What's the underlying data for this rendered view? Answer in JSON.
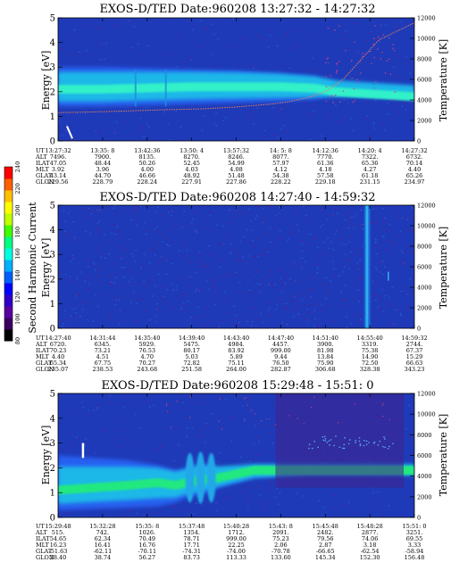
{
  "colorbar": {
    "label": "Second Harmonic Current",
    "ticks": [
      "80",
      "100",
      "120",
      "140",
      "160",
      "180",
      "200",
      "220",
      "240"
    ],
    "colors": [
      "#000000",
      "#3a0060",
      "#5a00a0",
      "#3000c8",
      "#0000ff",
      "#0060ff",
      "#00b0ff",
      "#00ffe0",
      "#00ff80",
      "#40ff00",
      "#c0ff00",
      "#ffff00",
      "#ffc000",
      "#ff6000",
      "#ff0000"
    ]
  },
  "chart_data": [
    {
      "type": "heatmap",
      "title": "EXOS-D/TED   Date:960208   13:27:32 - 14:27:32",
      "ylabel": "Energy [eV]",
      "y2label": "Temperature [K]",
      "ylim": [
        0,
        5
      ],
      "y2lim": [
        0,
        12000
      ],
      "yticks": [
        "0",
        "1",
        "2",
        "3",
        "4",
        "5"
      ],
      "y2ticks": [
        "0",
        "2000",
        "4000",
        "6000",
        "8000",
        "10000",
        "12000"
      ],
      "band": {
        "x": [
          0.0,
          0.12,
          0.25,
          0.38,
          0.5,
          0.62,
          0.72,
          0.78,
          1.0
        ],
        "low": [
          1.4,
          1.4,
          1.45,
          1.5,
          1.55,
          1.6,
          1.7,
          1.9,
          2.0
        ],
        "high": [
          3.0,
          3.0,
          2.95,
          2.9,
          2.85,
          2.75,
          2.6,
          2.4,
          2.2
        ],
        "core": [
          2.1,
          2.1,
          2.15,
          2.2,
          2.2,
          2.2,
          2.15,
          2.0,
          1.8
        ]
      },
      "temperature": {
        "x": [
          0.0,
          0.1,
          0.2,
          0.3,
          0.4,
          0.5,
          0.6,
          0.65,
          0.7,
          0.75,
          0.8,
          0.85,
          0.9,
          1.0
        ],
        "y": [
          1.15,
          1.18,
          1.22,
          1.27,
          1.3,
          1.38,
          1.5,
          1.6,
          1.75,
          2.0,
          2.5,
          3.3,
          4.1,
          4.8
        ]
      },
      "table": {
        "row_labels": [
          "UT",
          "ALT",
          "ILAT",
          "MLT",
          "GLAT",
          "GLON"
        ],
        "columns": [
          [
            "13:27:32",
            "7496.",
            "47.05",
            "3.92",
            "43.14",
            "229.56"
          ],
          [
            "13:35: 8",
            "7900.",
            "48.44",
            "3.96",
            "44.70",
            "228.79"
          ],
          [
            "13:42:36",
            "8135.",
            "50.26",
            "4.00",
            "46.66",
            "228.24"
          ],
          [
            "13:50: 4",
            "8270.",
            "52.45",
            "4.03",
            "48.92",
            "227.91"
          ],
          [
            "13:57:32",
            "8246.",
            "54.99",
            "4.08",
            "51.48",
            "227.86"
          ],
          [
            "14: 5: 8",
            "8077.",
            "57.97",
            "4.12",
            "54.38",
            "228.22"
          ],
          [
            "14:12:36",
            "7770.",
            "61.36",
            "4.18",
            "57.58",
            "229.18"
          ],
          [
            "14:20: 4",
            "7322.",
            "65.36",
            "4.27",
            "61.18",
            "231.15"
          ],
          [
            "14:27:32",
            "6732.",
            "70.14",
            "4.40",
            "65.26",
            "234.97"
          ]
        ]
      }
    },
    {
      "type": "heatmap",
      "title": "EXOS-D/TED   Date:960208   14:27:40 - 14:59:32",
      "ylabel": "Energy [eV]",
      "y2label": "Temperature [K]",
      "ylim": [
        0,
        5
      ],
      "y2lim": [
        0,
        12000
      ],
      "yticks": [
        "0",
        "1",
        "2",
        "3",
        "4",
        "5"
      ],
      "y2ticks": [
        "0",
        "2000",
        "4000",
        "6000",
        "8000",
        "10000",
        "12000"
      ],
      "spike_x": 0.86,
      "table": {
        "row_labels": [
          "UT",
          "ALT",
          "ILAT",
          "MLT",
          "GLAT",
          "GLON"
        ],
        "columns": [
          [
            "14:27:40",
            "6720.",
            "70.23",
            "4.40",
            "65.34",
            "235.07"
          ],
          [
            "14:31:44",
            "6345.",
            "73.21",
            "4.51",
            "67.75",
            "238.53"
          ],
          [
            "14:35:40",
            "5929.",
            "76.53",
            "4.70",
            "70.27",
            "243.68"
          ],
          [
            "14:39:40",
            "5475.",
            "80.17",
            "5.03",
            "72.82",
            "251.58"
          ],
          [
            "14:43:40",
            "4984.",
            "83.92",
            "5.89",
            "75.11",
            "264.00"
          ],
          [
            "14:47:40",
            "4457.",
            "999.00",
            "9.44",
            "76.50",
            "282.87"
          ],
          [
            "14:51:40",
            "3900.",
            "81.98",
            "13.84",
            "75.90",
            "306.68"
          ],
          [
            "14:55:40",
            "3319.",
            "75.38",
            "14.90",
            "72.50",
            "328.38"
          ],
          [
            "14:59:32",
            "2744.",
            "67.37",
            "15.29",
            "66.63",
            "343.23"
          ]
        ]
      }
    },
    {
      "type": "heatmap",
      "title": "EXOS-D/TED   Date:960208   15:29:48 - 15:51: 0",
      "ylabel": "Energy [eV]",
      "y2label": "Temperature [K]",
      "ylim": [
        0,
        5
      ],
      "y2lim": [
        0,
        12000
      ],
      "yticks": [
        "0",
        "1",
        "2",
        "3",
        "4",
        "5"
      ],
      "y2ticks": [
        "0",
        "2000",
        "4000",
        "6000",
        "8000",
        "10000",
        "12000"
      ],
      "band": {
        "x": [
          0.0,
          0.1,
          0.2,
          0.28,
          0.33,
          0.36,
          0.4,
          0.45,
          0.55,
          0.7,
          0.85,
          1.0
        ],
        "low": [
          0.3,
          0.35,
          0.4,
          0.45,
          0.6,
          0.8,
          0.9,
          1.2,
          1.6,
          1.8,
          1.8,
          1.8
        ],
        "high": [
          2.5,
          2.4,
          2.3,
          2.1,
          1.9,
          2.0,
          2.2,
          2.0,
          1.9,
          1.9,
          1.9,
          1.9
        ],
        "core": [
          1.1,
          1.2,
          1.3,
          1.4,
          1.3,
          1.4,
          1.5,
          1.6,
          1.9,
          1.9,
          1.9,
          1.9
        ]
      },
      "table": {
        "row_labels": [
          "UT",
          "ALT",
          "ILAT",
          "MLT",
          "GLAT",
          "GLON"
        ],
        "columns": [
          [
            "15:29:48",
            "515.",
            "54.65",
            "16.23",
            "-51.63",
            "28.40"
          ],
          [
            "15:32:28",
            "742.",
            "62.34",
            "16.41",
            "-62.11",
            "38.74"
          ],
          [
            "15:35: 8",
            "1026.",
            "70.49",
            "16.76",
            "-70.11",
            "56.27"
          ],
          [
            "15:37:48",
            "1354.",
            "78.71",
            "17.71",
            "-74.31",
            "83.73"
          ],
          [
            "15:40:28",
            "1712.",
            "999.00",
            "22.25",
            "-74.00",
            "113.33"
          ],
          [
            "15:43: 8",
            "2091.",
            "75.23",
            "2.06",
            "-70.78",
            "133.60"
          ],
          [
            "15:45:48",
            "2482.",
            "79.56",
            "2.87",
            "-66.65",
            "145.34"
          ],
          [
            "15:48:28",
            "2877.",
            "74.06",
            "3.18",
            "-62.54",
            "152.30"
          ],
          [
            "15:51: 0",
            "3251.",
            "69.55",
            "3.33",
            "-58.94",
            "156.48"
          ]
        ]
      }
    }
  ]
}
